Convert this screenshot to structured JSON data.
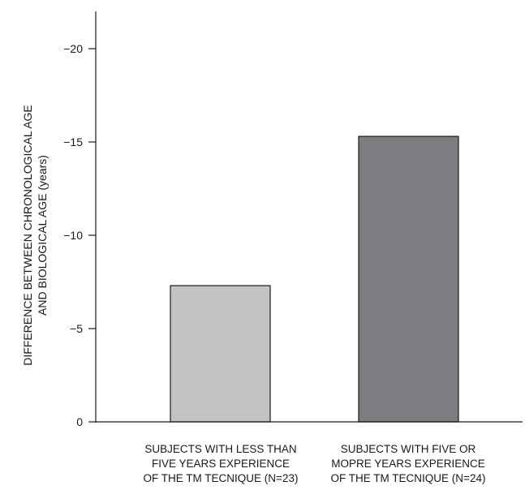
{
  "chart_data": {
    "type": "bar",
    "ylabel": [
      "DIFFERENCE BETWEEN CHRONOLOGICAL AGE",
      "AND BIOLOGICAL AGE (years)"
    ],
    "categories": [
      [
        "SUBJECTS WITH LESS THAN",
        "FIVE YEARS EXPERIENCE",
        "OF THE TM TECNIQUE (N=23)"
      ],
      [
        "SUBJECTS WITH FIVE OR",
        "MOPRE YEARS EXPERIENCE",
        "OF THE TM TECNIQUE (N=24)"
      ]
    ],
    "values": [
      -7.3,
      -15.3
    ],
    "bar_colors": [
      "#c2c3c5",
      "#7c7d80"
    ],
    "yticks": [
      0,
      -5,
      -10,
      -15,
      -20
    ],
    "ytick_labels": [
      "0",
      "−5",
      "−10",
      "−15",
      "−20"
    ],
    "ylim": [
      0,
      -21
    ]
  }
}
